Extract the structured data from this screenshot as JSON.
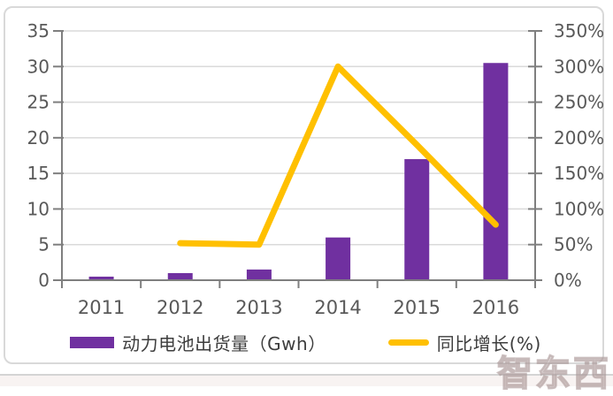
{
  "chart_data": {
    "type": "bar",
    "subtype": "combo-bar-line",
    "categories": [
      "2011",
      "2012",
      "2013",
      "2014",
      "2015",
      "2016"
    ],
    "series": [
      {
        "name": "动力电池出货量（Gwh）",
        "type": "bar",
        "axis": "left",
        "color": "#7030A0",
        "values": [
          0.5,
          1.0,
          1.5,
          6.0,
          17.0,
          30.5
        ]
      },
      {
        "name": "同比增长(%)",
        "type": "line",
        "axis": "right",
        "color": "#FFC000",
        "values": [
          null,
          52,
          50,
          300,
          190,
          78
        ]
      }
    ],
    "left_axis": {
      "min": 0,
      "max": 35,
      "ticks": [
        {
          "v": 0,
          "label": "0"
        },
        {
          "v": 5,
          "label": "5"
        },
        {
          "v": 10,
          "label": "10"
        },
        {
          "v": 15,
          "label": "15"
        },
        {
          "v": 20,
          "label": "20"
        },
        {
          "v": 25,
          "label": "25"
        },
        {
          "v": 30,
          "label": "30"
        },
        {
          "v": 35,
          "label": "35"
        }
      ]
    },
    "right_axis": {
      "min": 0,
      "max": 350,
      "ticks": [
        {
          "v": 0,
          "label": "0%"
        },
        {
          "v": 50,
          "label": "50%"
        },
        {
          "v": 100,
          "label": "100%"
        },
        {
          "v": 150,
          "label": "150%"
        },
        {
          "v": 200,
          "label": "200%"
        },
        {
          "v": 250,
          "label": "250%"
        },
        {
          "v": 300,
          "label": "300%"
        },
        {
          "v": 350,
          "label": "350%"
        }
      ]
    },
    "grid": true,
    "legend_position": "bottom",
    "title": "",
    "xlabel": "",
    "ylabel": ""
  },
  "colors": {
    "bar": "#7030A0",
    "line": "#FFC000",
    "axis": "#7F7F7F",
    "grid": "#DADADA",
    "tick_label": "#595959"
  },
  "watermark": {
    "text": "智东西"
  }
}
